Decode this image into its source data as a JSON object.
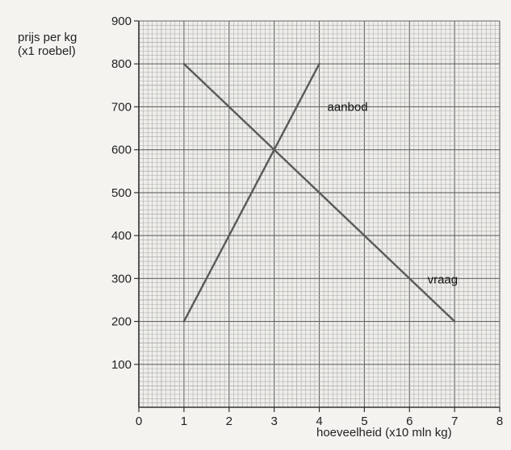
{
  "chart_data": {
    "type": "line",
    "title": "",
    "ylabel_lines": [
      "prijs per kg",
      "(x1 roebel)"
    ],
    "xlabel": "hoeveelheid (x10 mln kg)",
    "xlim": [
      0,
      8
    ],
    "ylim": [
      0,
      900
    ],
    "x_ticks": [
      0,
      1,
      2,
      3,
      4,
      5,
      6,
      7,
      8
    ],
    "y_ticks": [
      100,
      200,
      300,
      400,
      500,
      600,
      700,
      800,
      900
    ],
    "grid": true,
    "series": [
      {
        "name": "aanbod",
        "x": [
          1,
          4
        ],
        "y": [
          200,
          800
        ],
        "color": "#5a5a5a"
      },
      {
        "name": "vraag",
        "x": [
          1,
          7
        ],
        "y": [
          800,
          200
        ],
        "color": "#5a5a5a"
      }
    ]
  },
  "colors": {
    "grid_minor": "#a9a9a9",
    "grid_major": "#666666",
    "axis": "#333333",
    "background": "#f4f3f0"
  }
}
